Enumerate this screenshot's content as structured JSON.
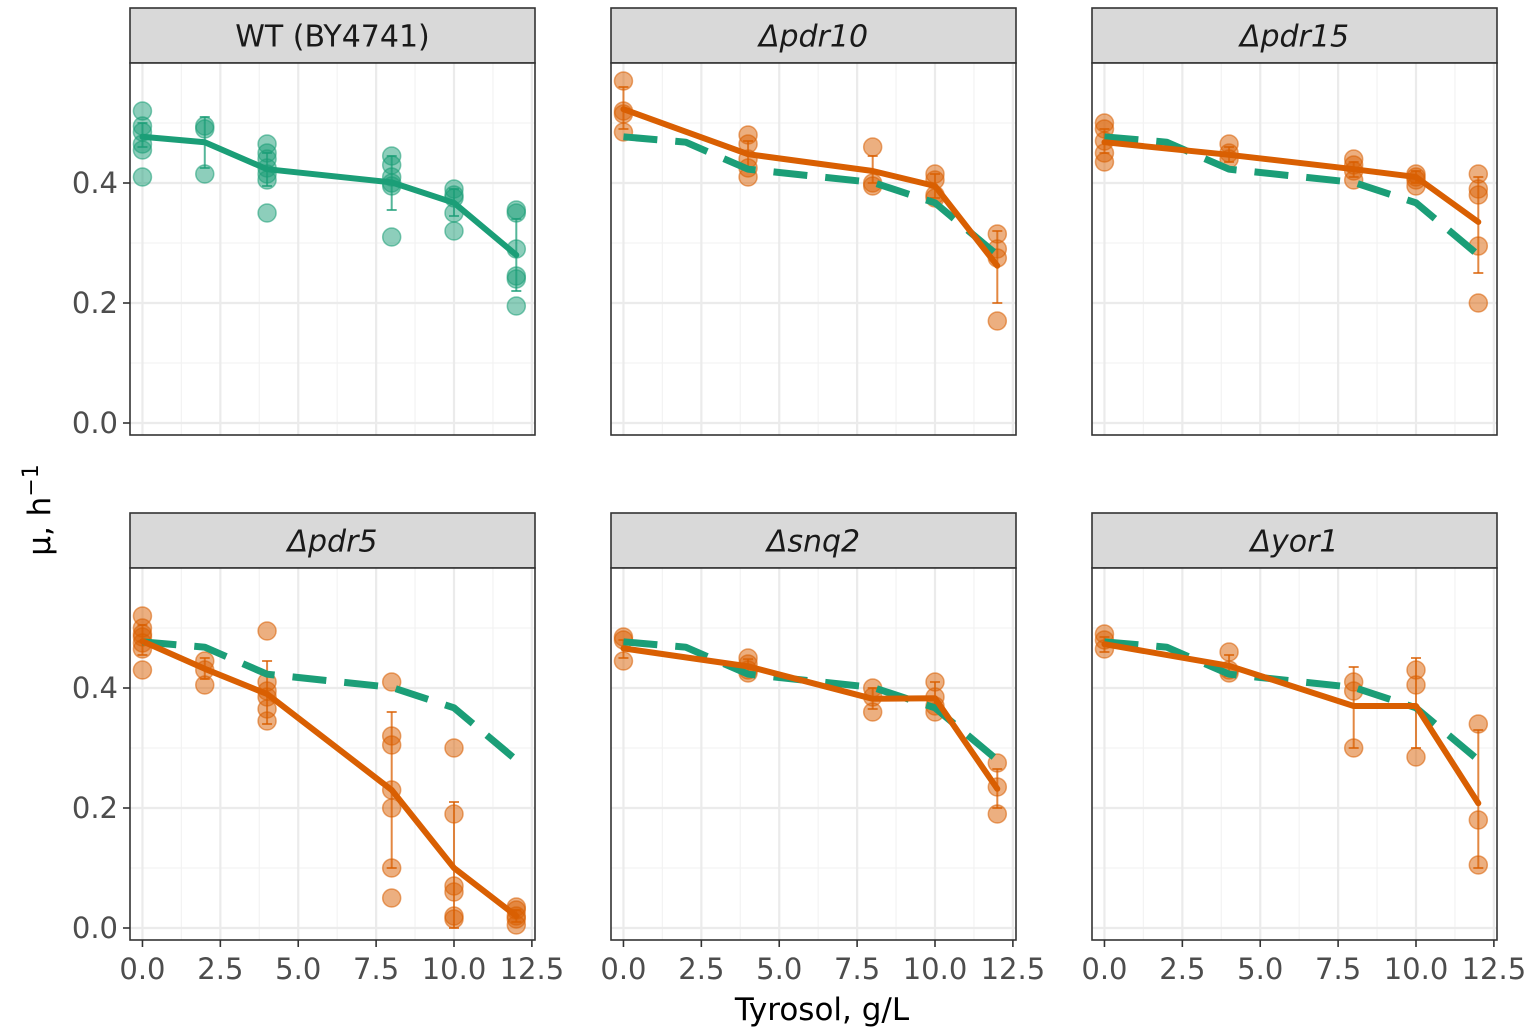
{
  "colors": {
    "wt": "#1b9e77",
    "mutant": "#d95f02",
    "strip": "#d9d9d9",
    "grid": "#ebebeb"
  },
  "chart_data": {
    "type": "scatter",
    "xlabel": "Tyrosol, g/L",
    "ylabel": "μ, h",
    "ylabel_superscript": "−1",
    "xlim": [
      -0.4,
      12.6
    ],
    "ylim": [
      -0.02,
      0.6
    ],
    "x_ticks": [
      0.0,
      2.5,
      5.0,
      7.5,
      10.0,
      12.5
    ],
    "x_tick_labels": [
      "0.0",
      "2.5",
      "5.0",
      "7.5",
      "10.0",
      "12.5"
    ],
    "y_ticks": [
      0.0,
      0.2,
      0.4
    ],
    "y_tick_labels": [
      "0.0",
      "0.2",
      "0.4"
    ],
    "wt_reference_x": [
      0,
      2,
      4,
      8,
      10,
      12
    ],
    "wt_reference_mean": [
      0.477,
      0.468,
      0.423,
      0.401,
      0.367,
      0.28
    ],
    "panels": [
      {
        "title": "WT (BY4741)",
        "italic": false,
        "strain": "wt",
        "points": [
          [
            0,
            0.52
          ],
          [
            0,
            0.495
          ],
          [
            0,
            0.485
          ],
          [
            0,
            0.465
          ],
          [
            0,
            0.455
          ],
          [
            0,
            0.41
          ],
          [
            2,
            0.495
          ],
          [
            2,
            0.49
          ],
          [
            2,
            0.415
          ],
          [
            4,
            0.465
          ],
          [
            4,
            0.45
          ],
          [
            4,
            0.44
          ],
          [
            4,
            0.425
          ],
          [
            4,
            0.415
          ],
          [
            4,
            0.405
          ],
          [
            4,
            0.35
          ],
          [
            8,
            0.445
          ],
          [
            8,
            0.43
          ],
          [
            8,
            0.41
          ],
          [
            8,
            0.4
          ],
          [
            8,
            0.395
          ],
          [
            8,
            0.31
          ],
          [
            10,
            0.39
          ],
          [
            10,
            0.38
          ],
          [
            10,
            0.375
          ],
          [
            10,
            0.35
          ],
          [
            10,
            0.32
          ],
          [
            12,
            0.355
          ],
          [
            12,
            0.35
          ],
          [
            12,
            0.29
          ],
          [
            12,
            0.245
          ],
          [
            12,
            0.24
          ],
          [
            12,
            0.195
          ]
        ],
        "mean": [
          0.477,
          0.468,
          0.423,
          0.401,
          0.367,
          0.28
        ],
        "sd_low": [
          0.46,
          0.425,
          0.395,
          0.355,
          0.345,
          0.22
        ],
        "sd_high": [
          0.5,
          0.51,
          0.45,
          0.445,
          0.39,
          0.34
        ],
        "show_reference": false
      },
      {
        "title": "Δpdr10",
        "italic": true,
        "strain": "mutant",
        "points": [
          [
            0,
            0.57
          ],
          [
            0,
            0.52
          ],
          [
            0,
            0.515
          ],
          [
            0,
            0.485
          ],
          [
            4,
            0.48
          ],
          [
            4,
            0.465
          ],
          [
            4,
            0.44
          ],
          [
            4,
            0.425
          ],
          [
            4,
            0.41
          ],
          [
            8,
            0.46
          ],
          [
            8,
            0.4
          ],
          [
            8,
            0.395
          ],
          [
            10,
            0.415
          ],
          [
            10,
            0.405
          ],
          [
            10,
            0.38
          ],
          [
            10,
            0.375
          ],
          [
            12,
            0.315
          ],
          [
            12,
            0.29
          ],
          [
            12,
            0.275
          ],
          [
            12,
            0.17
          ]
        ],
        "mean": [
          0.523,
          null,
          0.448,
          0.42,
          0.395,
          0.262
        ],
        "sd_low": [
          0.49,
          null,
          0.425,
          0.4,
          0.375,
          0.2
        ],
        "sd_high": [
          0.56,
          null,
          0.47,
          0.445,
          0.415,
          0.32
        ],
        "show_reference": true
      },
      {
        "title": "Δpdr15",
        "italic": true,
        "strain": "mutant",
        "points": [
          [
            0,
            0.5
          ],
          [
            0,
            0.49
          ],
          [
            0,
            0.47
          ],
          [
            0,
            0.45
          ],
          [
            0,
            0.435
          ],
          [
            4,
            0.465
          ],
          [
            4,
            0.45
          ],
          [
            4,
            0.44
          ],
          [
            8,
            0.44
          ],
          [
            8,
            0.43
          ],
          [
            8,
            0.42
          ],
          [
            8,
            0.405
          ],
          [
            10,
            0.415
          ],
          [
            10,
            0.41
          ],
          [
            10,
            0.405
          ],
          [
            10,
            0.395
          ],
          [
            12,
            0.415
          ],
          [
            12,
            0.39
          ],
          [
            12,
            0.38
          ],
          [
            12,
            0.295
          ],
          [
            12,
            0.2
          ]
        ],
        "mean": [
          0.468,
          null,
          0.447,
          0.423,
          0.41,
          0.335
        ],
        "sd_low": [
          0.45,
          null,
          0.435,
          0.41,
          0.4,
          0.25
        ],
        "sd_high": [
          0.49,
          null,
          0.46,
          0.435,
          0.42,
          0.41
        ],
        "show_reference": true
      },
      {
        "title": "Δpdr5",
        "italic": true,
        "strain": "mutant",
        "points": [
          [
            0,
            0.52
          ],
          [
            0,
            0.5
          ],
          [
            0,
            0.49
          ],
          [
            0,
            0.485
          ],
          [
            0,
            0.475
          ],
          [
            0,
            0.465
          ],
          [
            0,
            0.43
          ],
          [
            2,
            0.445
          ],
          [
            2,
            0.43
          ],
          [
            2,
            0.405
          ],
          [
            4,
            0.495
          ],
          [
            4,
            0.41
          ],
          [
            4,
            0.395
          ],
          [
            4,
            0.385
          ],
          [
            4,
            0.365
          ],
          [
            4,
            0.345
          ],
          [
            8,
            0.41
          ],
          [
            8,
            0.32
          ],
          [
            8,
            0.305
          ],
          [
            8,
            0.23
          ],
          [
            8,
            0.2
          ],
          [
            8,
            0.1
          ],
          [
            8,
            0.05
          ],
          [
            10,
            0.3
          ],
          [
            10,
            0.19
          ],
          [
            10,
            0.07
          ],
          [
            10,
            0.06
          ],
          [
            10,
            0.02
          ],
          [
            10,
            0.015
          ],
          [
            12,
            0.035
          ],
          [
            12,
            0.03
          ],
          [
            12,
            0.02
          ],
          [
            12,
            0.015
          ],
          [
            12,
            0.005
          ]
        ],
        "mean": [
          0.478,
          0.432,
          0.39,
          0.23,
          0.1,
          0.02
        ],
        "sd_low": [
          0.455,
          0.415,
          0.34,
          0.1,
          0.0,
          0.01
        ],
        "sd_high": [
          0.505,
          0.45,
          0.445,
          0.36,
          0.21,
          0.03
        ],
        "show_reference": true
      },
      {
        "title": "Δsnq2",
        "italic": true,
        "strain": "mutant",
        "points": [
          [
            0,
            0.485
          ],
          [
            0,
            0.48
          ],
          [
            0,
            0.445
          ],
          [
            4,
            0.45
          ],
          [
            4,
            0.44
          ],
          [
            4,
            0.43
          ],
          [
            4,
            0.425
          ],
          [
            8,
            0.4
          ],
          [
            8,
            0.385
          ],
          [
            8,
            0.36
          ],
          [
            10,
            0.41
          ],
          [
            10,
            0.385
          ],
          [
            10,
            0.37
          ],
          [
            10,
            0.36
          ],
          [
            12,
            0.275
          ],
          [
            12,
            0.235
          ],
          [
            12,
            0.19
          ]
        ],
        "mean": [
          0.466,
          null,
          0.436,
          0.382,
          0.383,
          0.232
        ],
        "sd_low": [
          0.45,
          null,
          0.425,
          0.365,
          0.365,
          0.2
        ],
        "sd_high": [
          0.48,
          null,
          0.448,
          0.4,
          0.41,
          0.265
        ],
        "show_reference": true
      },
      {
        "title": "Δyor1",
        "italic": true,
        "strain": "mutant",
        "points": [
          [
            0,
            0.49
          ],
          [
            0,
            0.48
          ],
          [
            0,
            0.465
          ],
          [
            4,
            0.46
          ],
          [
            4,
            0.43
          ],
          [
            4,
            0.425
          ],
          [
            8,
            0.41
          ],
          [
            8,
            0.395
          ],
          [
            8,
            0.3
          ],
          [
            10,
            0.43
          ],
          [
            10,
            0.405
          ],
          [
            10,
            0.285
          ],
          [
            12,
            0.34
          ],
          [
            12,
            0.18
          ],
          [
            12,
            0.105
          ]
        ],
        "mean": [
          0.473,
          null,
          0.437,
          0.37,
          0.37,
          0.208
        ],
        "sd_low": [
          0.46,
          null,
          0.42,
          0.3,
          0.3,
          0.1
        ],
        "sd_high": [
          0.485,
          null,
          0.455,
          0.435,
          0.45,
          0.33
        ],
        "show_reference": true
      }
    ]
  }
}
